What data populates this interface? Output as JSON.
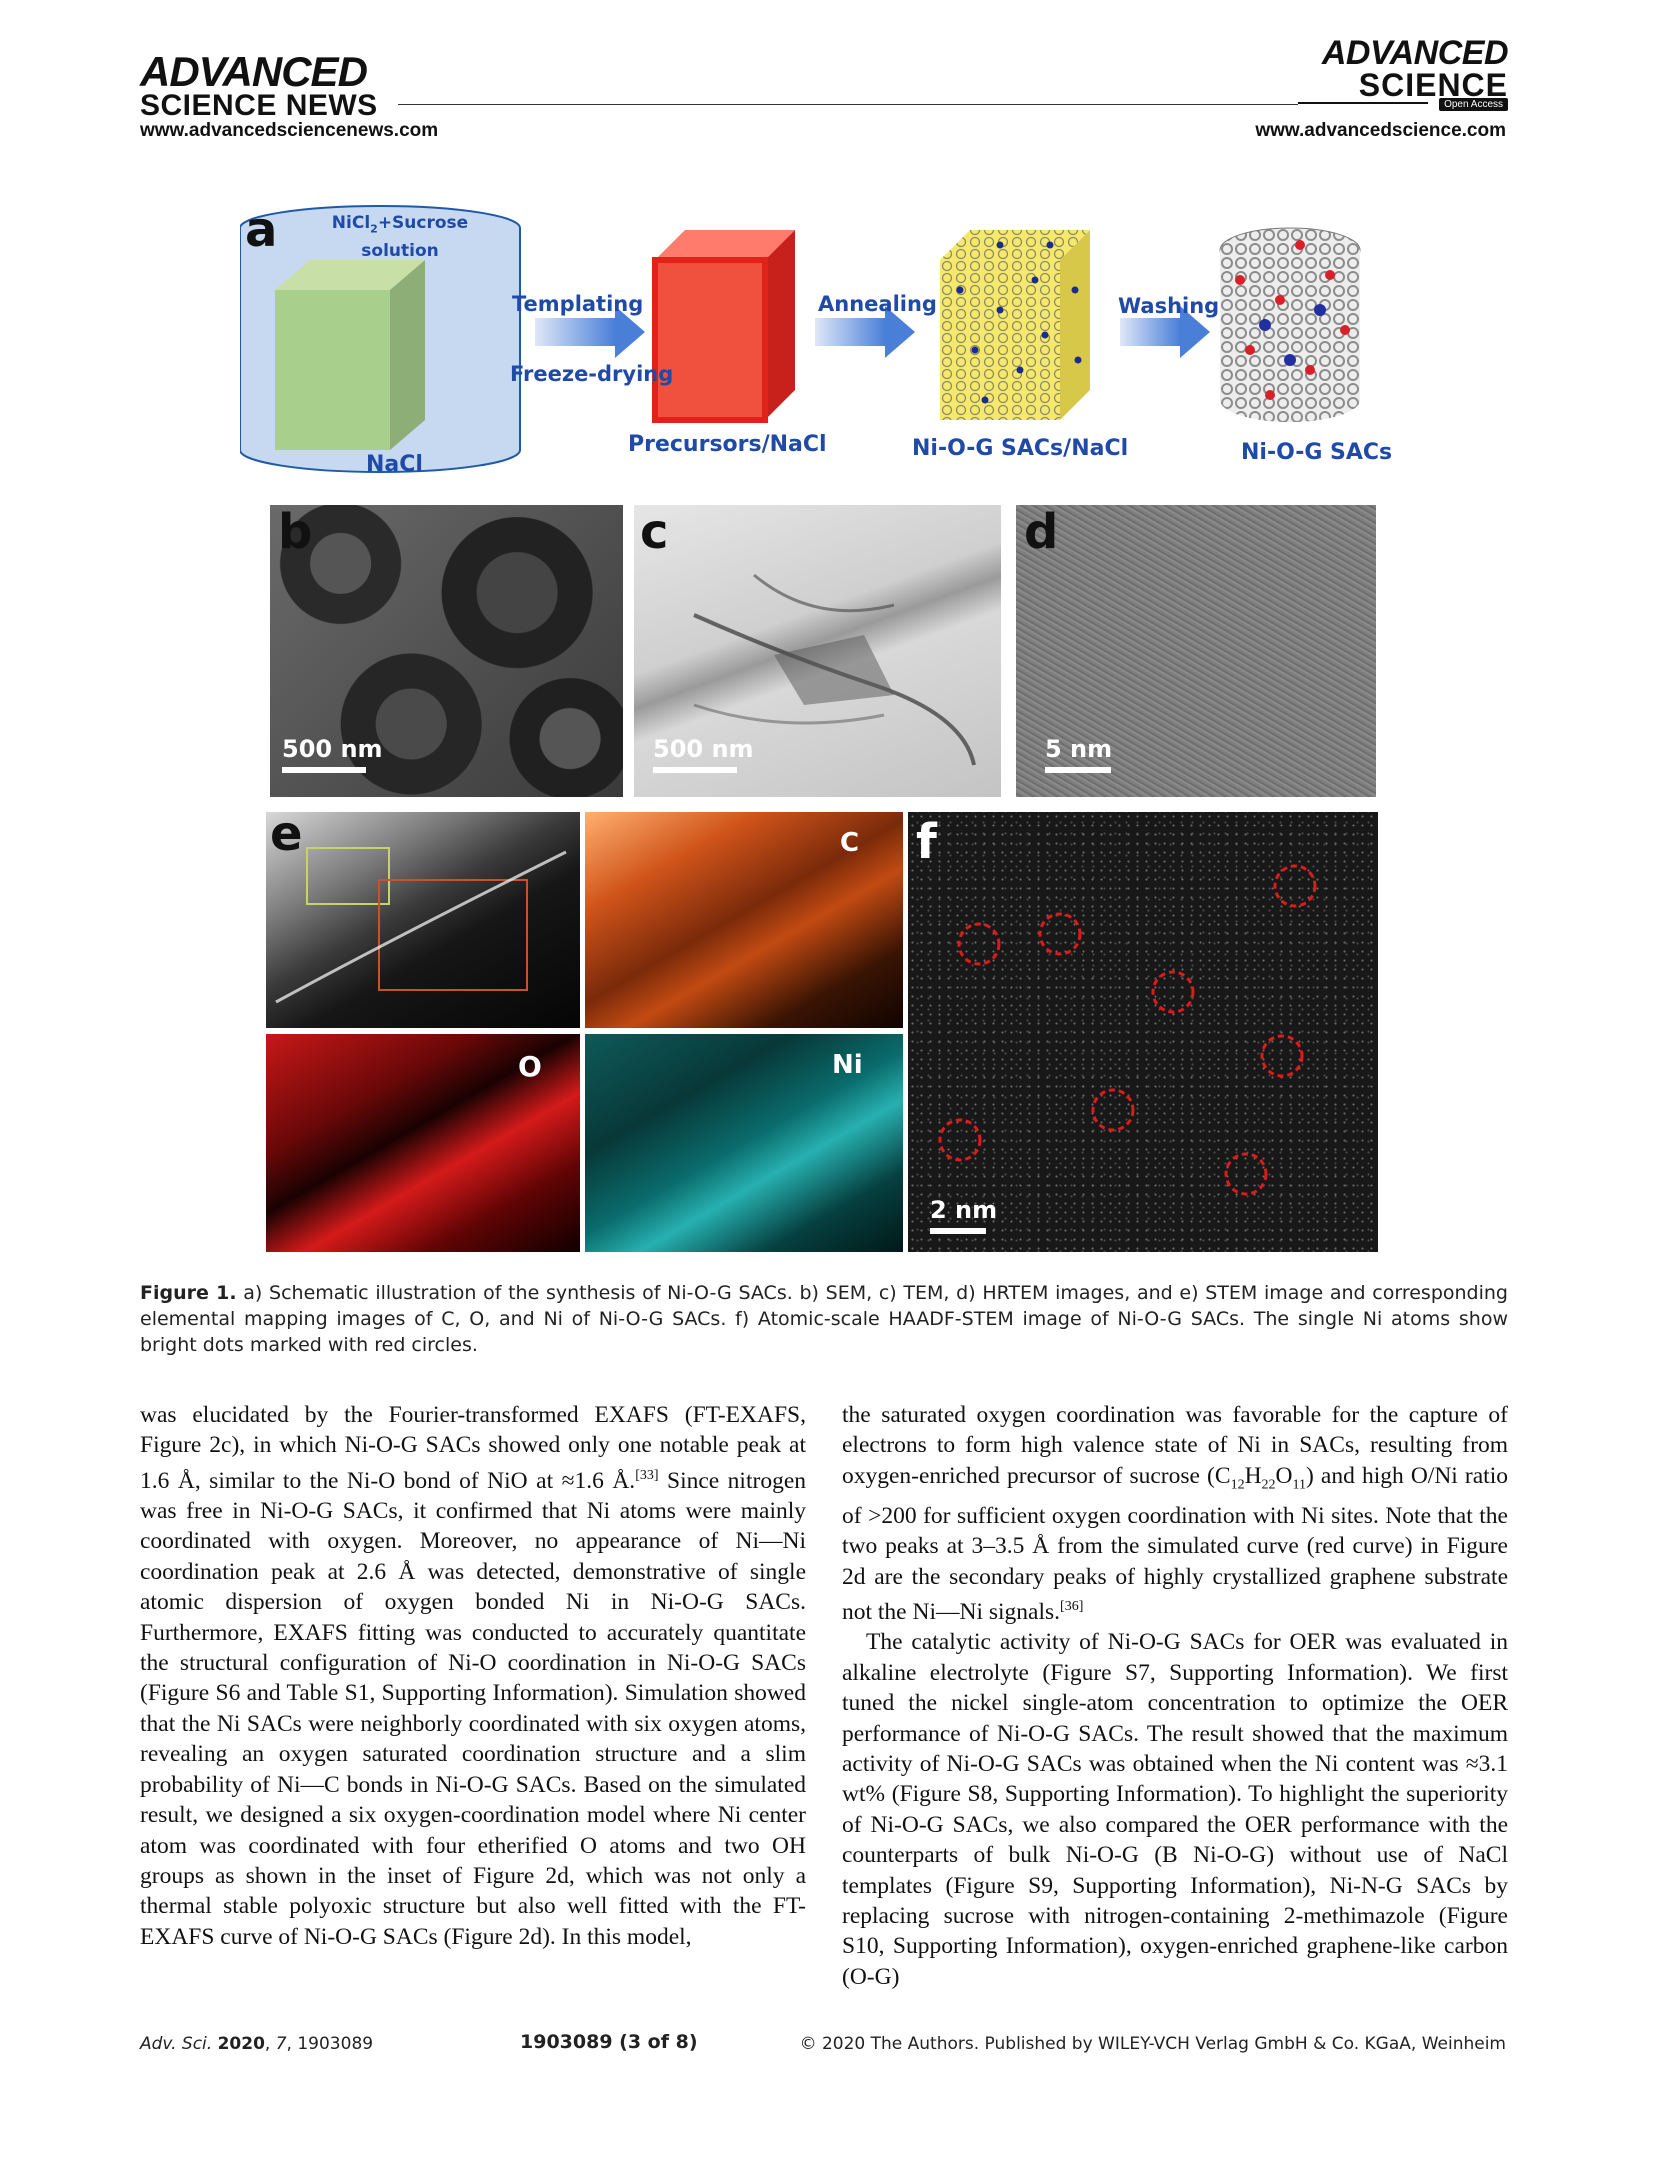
{
  "header": {
    "left_logo_line1": "ADVANCED",
    "left_logo_line2": "SCIENCE NEWS",
    "left_url": "www.advancedsciencenews.com",
    "right_logo_line1": "ADVANCED",
    "right_logo_line2": "SCIENCE",
    "right_logo_badge": "Open Access",
    "right_url": "www.advancedscience.com"
  },
  "figure": {
    "panel_a": {
      "letter": "a",
      "container_text_1": "NiCl",
      "container_text_sub": "2",
      "container_text_2": "+Sucrose",
      "container_text_3": "solution",
      "nacl_label": "NaCl",
      "step1_top": "Templating",
      "step1_bottom": "Freeze-drying",
      "precursor_label": "Precursors/NaCl",
      "step2": "Annealing",
      "nioG_nacl_label": "Ni-O-G SACs/NaCl",
      "step3": "Washing",
      "nioG_label": "Ni-O-G SACs"
    },
    "panel_b": {
      "letter": "b",
      "scale": "500 nm"
    },
    "panel_c": {
      "letter": "c",
      "scale": "500 nm"
    },
    "panel_d": {
      "letter": "d",
      "scale": "5 nm"
    },
    "panel_e": {
      "letter": "e",
      "map_c": "C",
      "map_o": "O",
      "map_ni": "Ni"
    },
    "panel_f": {
      "letter": "f",
      "scale": "2 nm"
    },
    "caption_label": "Figure 1.",
    "caption_text": " a) Schematic illustration of the synthesis of Ni-O-G SACs. b) SEM, c) TEM, d) HRTEM images, and e) STEM image and corresponding elemental mapping images of C, O, and Ni of Ni-O-G SACs. f) Atomic-scale HAADF-STEM image of Ni-O-G SACs. The single Ni atoms show bright dots marked with red circles."
  },
  "body": {
    "left_col_p1a": "was elucidated by the Fourier-transformed EXAFS (FT-EXAFS, Figure 2c), in which Ni-O-G SACs showed only one notable peak at 1.6 Å, similar to the Ni-O bond of NiO at ≈1.6 Å.",
    "left_col_ref1": "[33]",
    "left_col_p1b": " Since nitrogen was free in Ni-O-G SACs, it confirmed that Ni atoms were mainly coordinated with oxygen. Moreover, no appearance of Ni—Ni coordination peak at 2.6 Å was detected, demonstrative of single atomic dispersion of oxygen bonded Ni in Ni-O-G SACs. Furthermore, EXAFS fitting was conducted to accurately quantitate the structural configuration of Ni-O coordination in Ni-O-G SACs (Figure S6 and Table S1, Supporting Information). Simulation showed that the Ni SACs were neighborly coordinated with six oxygen atoms, revealing an oxygen saturated coordination structure and a slim probability of Ni—C bonds in Ni-O-G SACs. Based on the simulated result, we designed a six oxygen-coordination model where Ni center atom was coordinated with four etherified O atoms and two OH groups as shown in the inset of Figure 2d, which was not only a thermal stable polyoxic structure but also well fitted with the FT-EXAFS curve of Ni-O-G SACs (Figure 2d). In this model,",
    "right_col_p1a": "the saturated oxygen coordination was favorable for the capture of electrons to form high valence state of Ni in SACs, resulting from oxygen-enriched precursor of sucrose (C",
    "right_col_sub1": "12",
    "right_col_h": "H",
    "right_col_sub2": "22",
    "right_col_o": "O",
    "right_col_sub3": "11",
    "right_col_p1b": ") and high O/Ni ratio of >200 for sufficient oxygen coordination with Ni sites. Note that the two peaks at 3–3.5 Å from the simulated curve (red curve) in Figure 2d are the secondary peaks of highly crystallized graphene substrate not the Ni—Ni signals.",
    "right_col_ref2": "[36]",
    "right_col_p2": "The catalytic activity of Ni-O-G SACs for OER was evaluated in alkaline electrolyte (Figure S7, Supporting Information). We first tuned the nickel single-atom concentration to optimize the OER performance of Ni-O-G SACs. The result showed that the maximum activity of Ni-O-G SACs was obtained when the Ni content was ≈3.1 wt% (Figure S8, Supporting Information). To highlight the superiority of Ni-O-G SACs, we also compared the OER performance with the counterparts of bulk Ni-O-G (B Ni-O-G) without use of NaCl templates (Figure S9, Supporting Information), Ni-N-G SACs by replacing sucrose with nitrogen-containing 2-methimazole (Figure S10, Supporting Information), oxygen-enriched graphene-like carbon (O-G)"
  },
  "footer": {
    "journal": "Adv. Sci.",
    "year": "2020",
    "volume": "7",
    "article": "1903089",
    "page": "1903089  (3 of 8)",
    "copyright": "© 2020 The Authors. Published by WILEY-VCH Verlag GmbH & Co. KGaA, Weinheim"
  }
}
